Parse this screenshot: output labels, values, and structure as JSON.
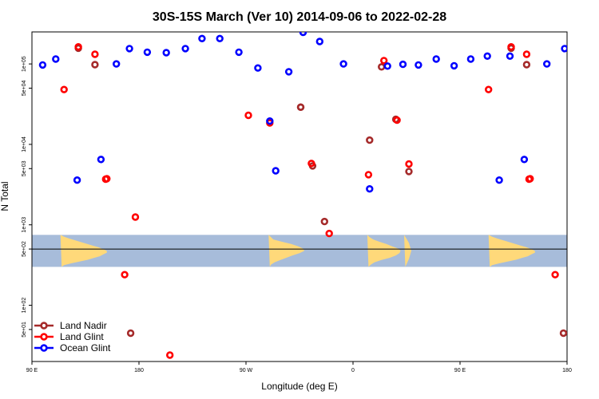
{
  "chart_data": {
    "type": "scatter",
    "title": "30S-15S March (Ver 10)   2014-09-06 to 2022-02-28",
    "xlabel": "Longitude (deg E)",
    "ylabel": "N Total",
    "x_ticks": [
      {
        "value": 90,
        "label": "90 E"
      },
      {
        "value": 180,
        "label": "180"
      },
      {
        "value": 270,
        "label": "90 W"
      },
      {
        "value": 360,
        "label": "0"
      },
      {
        "value": 450,
        "label": "90 E"
      },
      {
        "value": 540,
        "label": "180"
      }
    ],
    "xlim": [
      90,
      540
    ],
    "y_scale": "log",
    "y_ticks": [
      {
        "value": 50,
        "label": "5e+01"
      },
      {
        "value": 100,
        "label": "1e+02"
      },
      {
        "value": 500,
        "label": "5e+02"
      },
      {
        "value": 1000,
        "label": "1e+03"
      },
      {
        "value": 5000,
        "label": "5e+03"
      },
      {
        "value": 10000,
        "label": "1e+04"
      },
      {
        "value": 50000,
        "label": "5e+04"
      },
      {
        "value": 100000,
        "label": "1e+05"
      }
    ],
    "ylim": [
      20,
      250000
    ],
    "reference_line": 500,
    "map_band": {
      "y_low": 300,
      "y_high": 750
    },
    "colors": {
      "land_nadir": "#a52a2a",
      "land_glint": "#ff0000",
      "ocean_glint": "#0000ff",
      "ocean_fill": "#a7bcda",
      "land_fill": "#ffd97a"
    },
    "series": [
      {
        "name": "Land Nadir",
        "color": "#a52a2a",
        "points": [
          [
            129,
            157000
          ],
          [
            143,
            98000
          ],
          [
            173,
            45
          ],
          [
            316,
            29000
          ],
          [
            316,
            29000
          ],
          [
            326,
            5400
          ],
          [
            336,
            1100
          ],
          [
            374,
            11300
          ],
          [
            384,
            92000
          ],
          [
            396,
            20500
          ],
          [
            407,
            4600
          ],
          [
            493,
            157000
          ],
          [
            506,
            98000
          ],
          [
            537,
            45
          ]
        ]
      },
      {
        "name": "Land Glint",
        "color": "#ff0000",
        "points": [
          [
            117,
            48000
          ],
          [
            129,
            163000
          ],
          [
            143,
            132000
          ],
          [
            152,
            3700
          ],
          [
            153,
            3750
          ],
          [
            168,
            240
          ],
          [
            177,
            1250
          ],
          [
            206,
            24
          ],
          [
            272,
            23000
          ],
          [
            290,
            18500
          ],
          [
            325,
            5800
          ],
          [
            340,
            780
          ],
          [
            373,
            4200
          ],
          [
            386,
            110000
          ],
          [
            397,
            20000
          ],
          [
            407,
            5700
          ],
          [
            474,
            48000
          ],
          [
            493,
            163000
          ],
          [
            506,
            132000
          ],
          [
            508,
            3700
          ],
          [
            509,
            3750
          ],
          [
            530,
            240
          ]
        ]
      },
      {
        "name": "Ocean Glint",
        "color": "#0000ff",
        "points": [
          [
            99,
            97000
          ],
          [
            110,
            115000
          ],
          [
            128,
            3600
          ],
          [
            148,
            6500
          ],
          [
            161,
            100000
          ],
          [
            172,
            155000
          ],
          [
            187,
            140000
          ],
          [
            203,
            138000
          ],
          [
            219,
            155000
          ],
          [
            233,
            207000
          ],
          [
            248,
            207000
          ],
          [
            264,
            140000
          ],
          [
            280,
            89000
          ],
          [
            290,
            19500
          ],
          [
            295,
            4700
          ],
          [
            306,
            80000
          ],
          [
            318,
            247000
          ],
          [
            332,
            190000
          ],
          [
            352,
            100000
          ],
          [
            374,
            2800
          ],
          [
            389,
            94000
          ],
          [
            402,
            99000
          ],
          [
            415,
            97000
          ],
          [
            430,
            115000
          ],
          [
            445,
            95000
          ],
          [
            459,
            115000
          ],
          [
            473,
            125000
          ],
          [
            483,
            3600
          ],
          [
            492,
            125000
          ],
          [
            504,
            6500
          ],
          [
            523,
            100000
          ],
          [
            538,
            155000
          ]
        ]
      }
    ],
    "legend": {
      "position": "bottom-left",
      "entries": [
        "Land Nadir",
        "Land Glint",
        "Ocean Glint"
      ]
    }
  }
}
